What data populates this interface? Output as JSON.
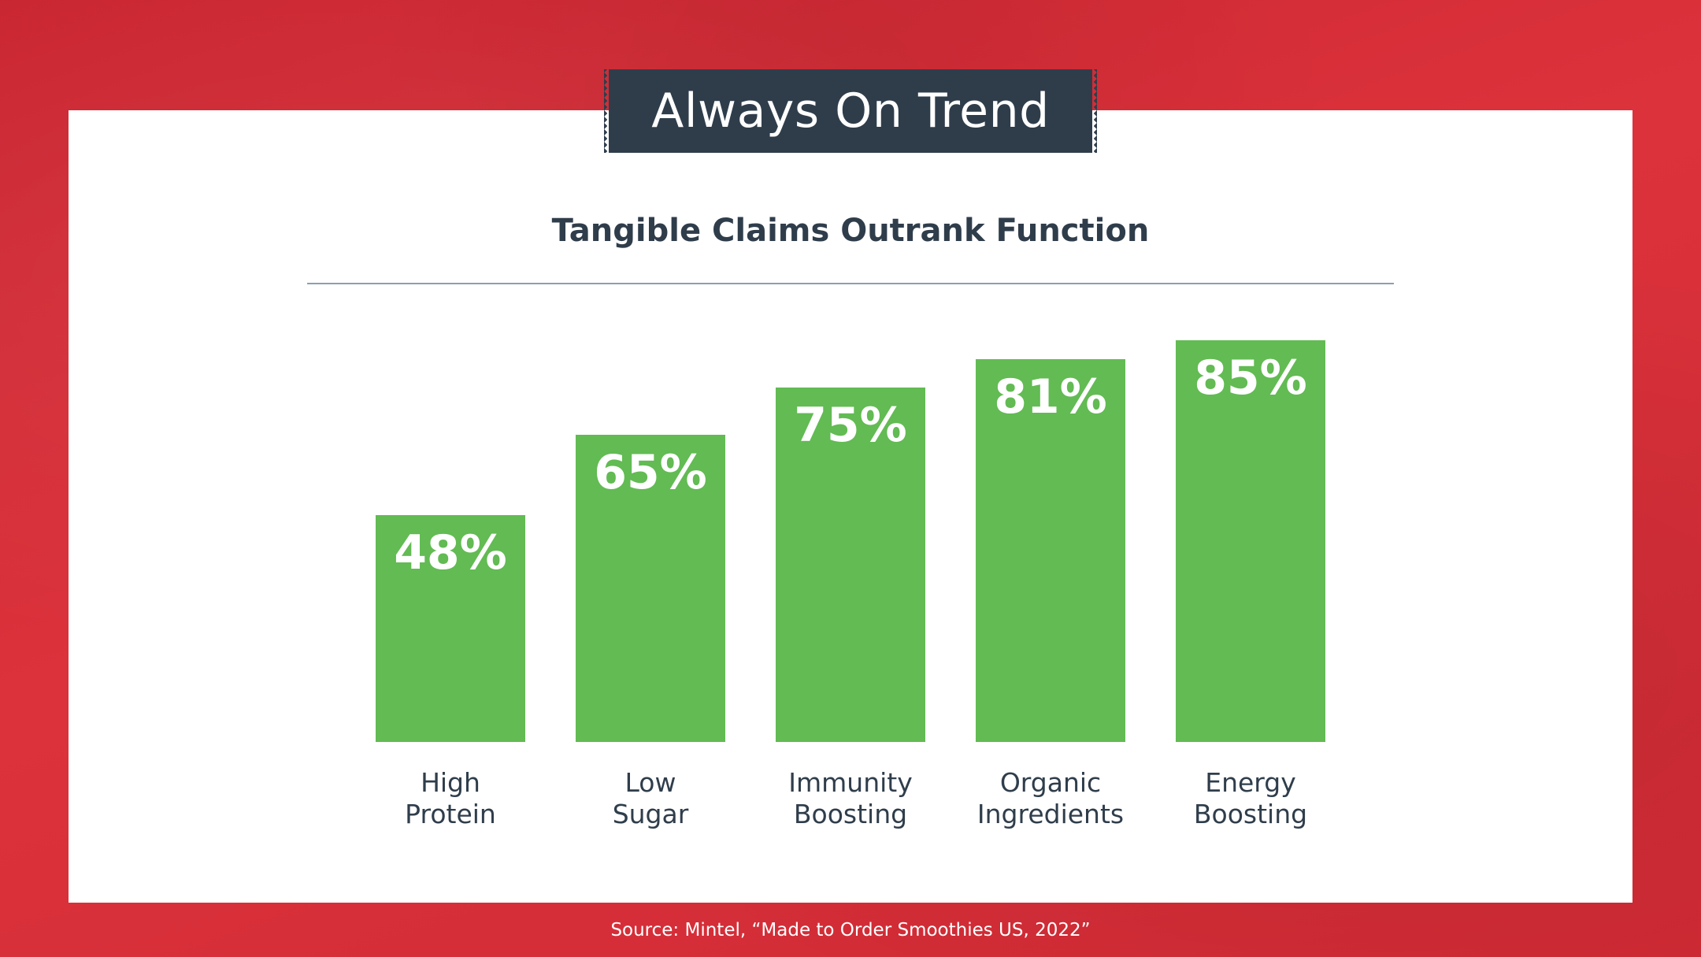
{
  "banner": {
    "title": "Always On Trend"
  },
  "chart_data": {
    "type": "bar",
    "title": "Tangible Claims Outrank Function",
    "categories": [
      [
        "High",
        "Protein"
      ],
      [
        "Low",
        "Sugar"
      ],
      [
        "Immunity",
        "Boosting"
      ],
      [
        "Organic",
        "Ingredients"
      ],
      [
        "Energy",
        "Boosting"
      ]
    ],
    "values": [
      48,
      65,
      75,
      81,
      85
    ],
    "data_labels": [
      "48%",
      "65%",
      "75%",
      "81%",
      "85%"
    ],
    "ylim": [
      0,
      100
    ],
    "grid": false,
    "legend": "none",
    "bar_color": "#62bb53"
  },
  "footer": {
    "source": "Source: Mintel, “Made to Order Smoothies US, 2022”"
  },
  "colors": {
    "background": "#d62d37",
    "card": "#ffffff",
    "banner": "#2f3d4b",
    "text_dark": "#2f3d4b",
    "rule": "#8a9fb3"
  }
}
